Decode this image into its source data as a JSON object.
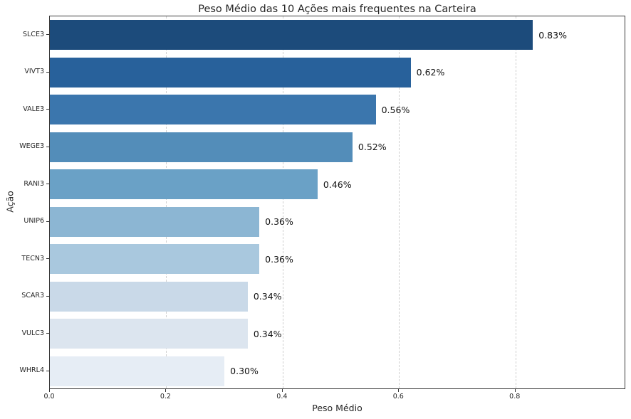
{
  "chart_data": {
    "type": "bar",
    "orientation": "horizontal",
    "title": "Peso Médio das 10 Ações mais frequentes na Carteira",
    "xlabel": "Peso Médio",
    "ylabel": "Ação",
    "categories": [
      "SLCE3",
      "VIVT3",
      "VALE3",
      "WEGE3",
      "RANI3",
      "UNIP6",
      "TECN3",
      "SCAR3",
      "VULC3",
      "WHRL4"
    ],
    "values": [
      0.83,
      0.62,
      0.56,
      0.52,
      0.46,
      0.36,
      0.36,
      0.34,
      0.34,
      0.3
    ],
    "value_labels": [
      "0.83%",
      "0.62%",
      "0.56%",
      "0.52%",
      "0.46%",
      "0.36%",
      "0.36%",
      "0.34%",
      "0.34%",
      "0.30%"
    ],
    "xlim": [
      0,
      0.99
    ],
    "x_ticks": [
      0.0,
      0.2,
      0.4,
      0.6,
      0.8
    ],
    "x_tick_labels": [
      "0.0",
      "0.2",
      "0.4",
      "0.6",
      "0.8"
    ],
    "grid": "vertical-dashed",
    "legend": null,
    "bar_colors": [
      "#1c4b7b",
      "#28619b",
      "#3b76ad",
      "#538db9",
      "#6aa1c6",
      "#8cb6d3",
      "#a9c8de",
      "#c9d9e8",
      "#dce5ef",
      "#e6edf5"
    ],
    "grid_color": "#cfcfcf",
    "spine_color": "#3a3a3a",
    "text_color": "#262626",
    "background": "#ffffff"
  }
}
